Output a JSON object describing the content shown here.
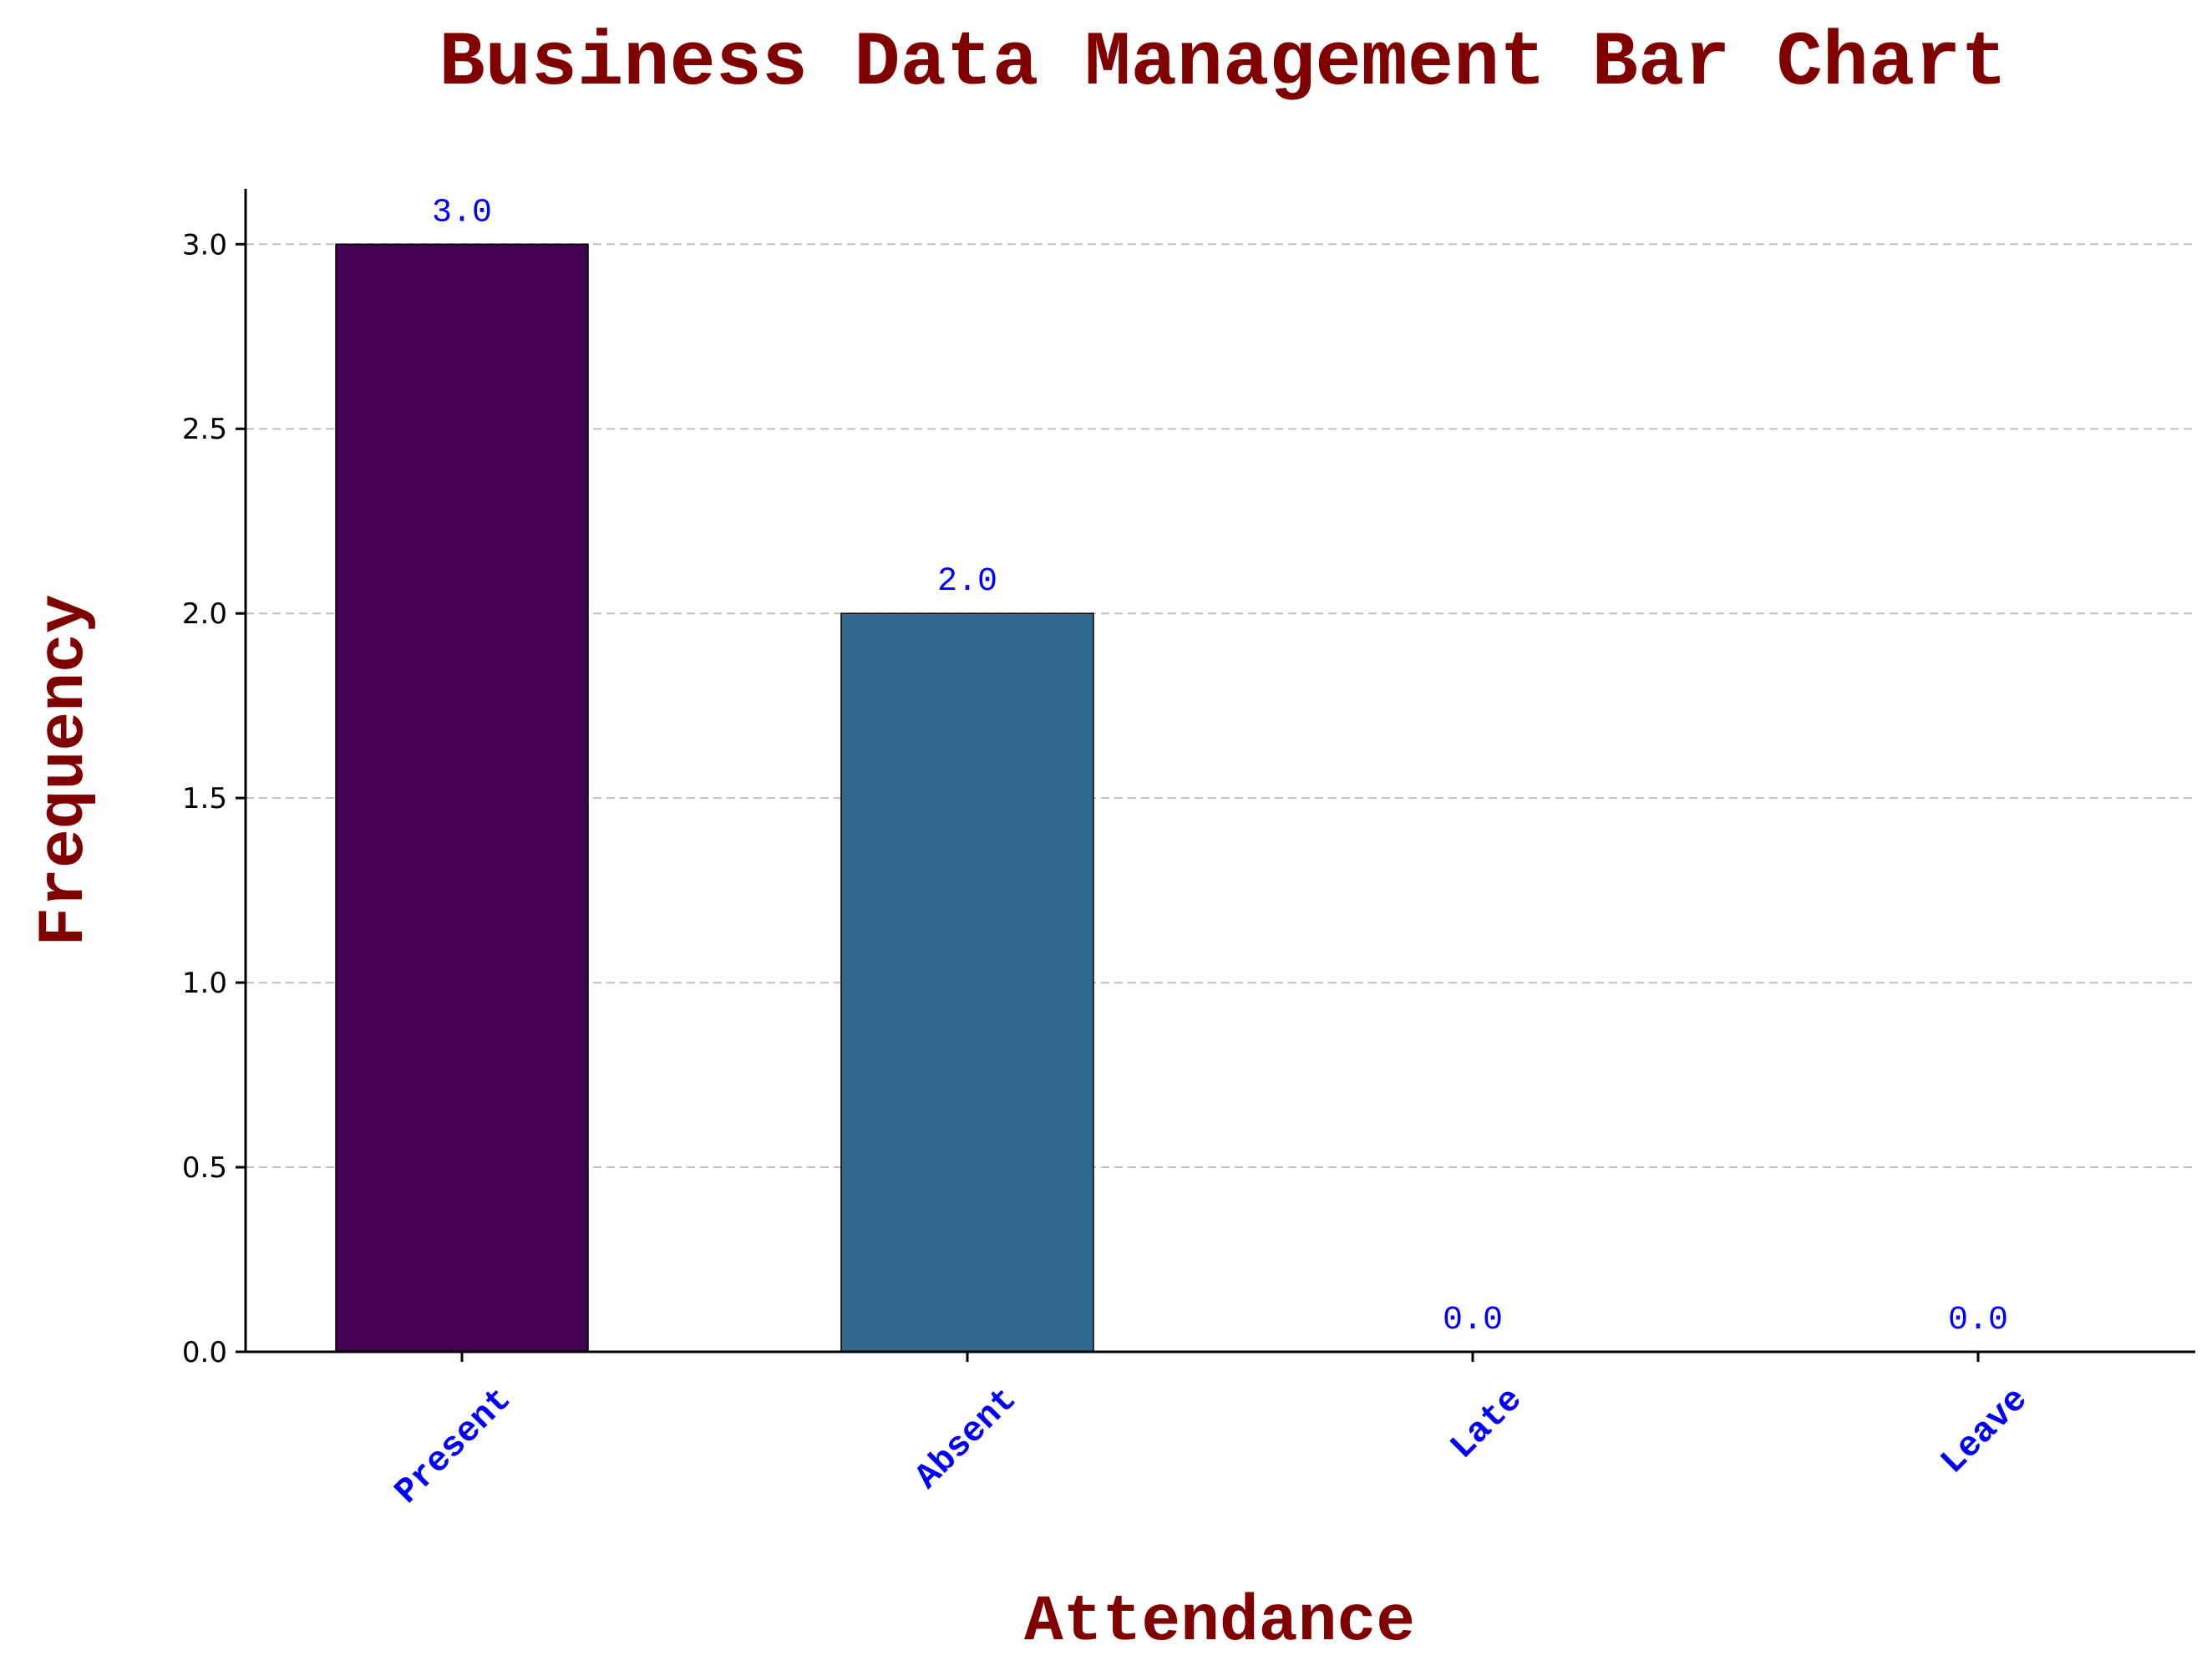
{
  "chart_data": {
    "type": "bar",
    "title": "Business Data Management Bar Chart",
    "xlabel": "Attendance",
    "ylabel": "Frequency",
    "categories": [
      "Present",
      "Absent",
      "Late",
      "Leave"
    ],
    "values": [
      3.0,
      2.0,
      0.0,
      0.0
    ],
    "data_labels": [
      "3.0",
      "2.0",
      "0.0",
      "0.0"
    ],
    "bar_colors": [
      "#440154",
      "#31688e",
      "#35b779",
      "#fde725"
    ],
    "ylim": [
      0,
      3.15
    ],
    "yticks": [
      0.0,
      0.5,
      1.0,
      1.5,
      2.0,
      2.5,
      3.0
    ],
    "ytick_labels": [
      "0.0",
      "0.5",
      "1.0",
      "1.5",
      "2.0",
      "2.5",
      "3.0"
    ],
    "grid": "y-dashed",
    "colors": {
      "title": "#800000",
      "axis_label": "#800000",
      "tick_label_x": "#0000ff",
      "data_label": "#0000ff",
      "grid": "#c0c0c0"
    }
  }
}
